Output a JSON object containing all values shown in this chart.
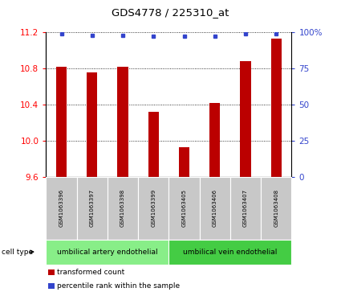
{
  "title": "GDS4778 / 225310_at",
  "samples": [
    "GSM1063396",
    "GSM1063397",
    "GSM1063398",
    "GSM1063399",
    "GSM1063405",
    "GSM1063406",
    "GSM1063407",
    "GSM1063408"
  ],
  "red_values": [
    10.82,
    10.75,
    10.82,
    10.32,
    9.93,
    10.42,
    10.88,
    11.13
  ],
  "blue_values": [
    99,
    98,
    98,
    97,
    97,
    97,
    99,
    99
  ],
  "ylim_left": [
    9.6,
    11.2
  ],
  "ylim_right": [
    0,
    100
  ],
  "yticks_left": [
    9.6,
    10.0,
    10.4,
    10.8,
    11.2
  ],
  "yticks_right": [
    0,
    25,
    50,
    75,
    100
  ],
  "ytick_labels_right": [
    "0",
    "25",
    "50",
    "75",
    "100%"
  ],
  "bar_color": "#bb0000",
  "dot_color": "#3344cc",
  "cell_groups": [
    {
      "label": "umbilical artery endothelial",
      "start": 0,
      "end": 4,
      "color": "#88ee88"
    },
    {
      "label": "umbilical vein endothelial",
      "start": 4,
      "end": 8,
      "color": "#44cc44"
    }
  ],
  "cell_type_label": "cell type",
  "legend_items": [
    {
      "color": "#bb0000",
      "label": "transformed count"
    },
    {
      "color": "#3344cc",
      "label": "percentile rank within the sample"
    }
  ],
  "sample_box_color": "#c8c8c8",
  "bar_width": 0.35
}
